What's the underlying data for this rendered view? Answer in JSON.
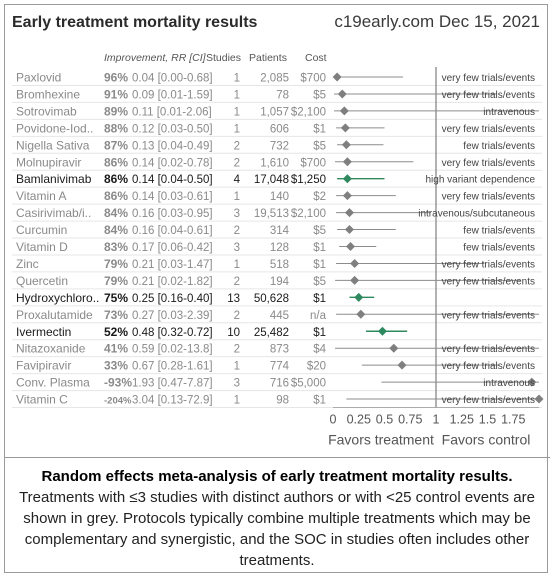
{
  "header": {
    "title": "Early treatment mortality results",
    "source": "c19early.com Dec 15, 2021"
  },
  "columns": {
    "improvement": "Improvement, RR [CI]",
    "studies": "Studies",
    "patients": "Patients",
    "cost": "Cost"
  },
  "caption": {
    "bold": "Random effects meta-analysis of early treatment mortality results.",
    "text": "Treatments with ≤3 studies with distinct authors or with <25 control events are shown in grey. Protocols typically combine multiple treatments which may be complementary and synergistic, and the SOC in studies often includes other treatments."
  },
  "colors": {
    "grey_text": "#8a8a8a",
    "dark_text": "#1a1a1a",
    "grey_marker": "#7f7f7f",
    "green_marker": "#2e8a5e",
    "grey_line": "#8c8c8c",
    "green_line": "#2e8a5e"
  },
  "chart_data": {
    "type": "forest",
    "xlim": [
      0,
      2
    ],
    "ticks": [
      "0",
      "0.25",
      "0.5",
      "0.75",
      "1",
      "1.25",
      "1.5",
      "1.75"
    ],
    "tick_values": [
      0,
      0.25,
      0.5,
      0.75,
      1,
      1.25,
      1.5,
      1.75
    ],
    "reference_line": 1,
    "xlabel_left": "Favors treatment",
    "xlabel_right": "Favors control",
    "rows": [
      {
        "name": "Paxlovid",
        "improvement": "96%",
        "rr": "0.04 [0.00-0.68]",
        "rr_value": 0.04,
        "ci": [
          0.0,
          0.68
        ],
        "studies": "1",
        "patients": "2,085",
        "cost": "$700",
        "note": "very few trials/events",
        "highlight": false
      },
      {
        "name": "Bromhexine",
        "improvement": "91%",
        "rr": "0.09 [0.01-1.59]",
        "rr_value": 0.09,
        "ci": [
          0.01,
          1.59
        ],
        "studies": "1",
        "patients": "78",
        "cost": "$5",
        "note": "very few trials/events",
        "highlight": false
      },
      {
        "name": "Sotrovimab",
        "improvement": "89%",
        "rr": "0.11 [0.01-2.06]",
        "rr_value": 0.11,
        "ci": [
          0.01,
          2.06
        ],
        "studies": "1",
        "patients": "1,057",
        "cost": "$2,100",
        "note": "intravenous",
        "highlight": false
      },
      {
        "name": "Povidone-Iod..",
        "improvement": "88%",
        "rr": "0.12 [0.03-0.50]",
        "rr_value": 0.12,
        "ci": [
          0.03,
          0.5
        ],
        "studies": "1",
        "patients": "606",
        "cost": "$1",
        "note": "very few trials/events",
        "highlight": false
      },
      {
        "name": "Nigella Sativa",
        "improvement": "87%",
        "rr": "0.13 [0.04-0.49]",
        "rr_value": 0.13,
        "ci": [
          0.04,
          0.49
        ],
        "studies": "2",
        "patients": "732",
        "cost": "$5",
        "note": "few trials/events",
        "highlight": false
      },
      {
        "name": "Molnupiravir",
        "improvement": "86%",
        "rr": "0.14 [0.02-0.78]",
        "rr_value": 0.14,
        "ci": [
          0.02,
          0.78
        ],
        "studies": "2",
        "patients": "1,610",
        "cost": "$700",
        "note": "very few trials/events",
        "highlight": false
      },
      {
        "name": "Bamlanivimab",
        "improvement": "86%",
        "rr": "0.14 [0.04-0.50]",
        "rr_value": 0.14,
        "ci": [
          0.04,
          0.5
        ],
        "studies": "4",
        "patients": "17,048",
        "cost": "$1,250",
        "note": "high variant dependence",
        "highlight": true
      },
      {
        "name": "Vitamin A",
        "improvement": "86%",
        "rr": "0.14 [0.03-0.61]",
        "rr_value": 0.14,
        "ci": [
          0.03,
          0.61
        ],
        "studies": "1",
        "patients": "140",
        "cost": "$2",
        "note": "very few trials/events",
        "highlight": false
      },
      {
        "name": "Casirivimab/i..",
        "improvement": "84%",
        "rr": "0.16 [0.03-0.95]",
        "rr_value": 0.16,
        "ci": [
          0.03,
          0.95
        ],
        "studies": "3",
        "patients": "19,513",
        "cost": "$2,100",
        "note": "intravenous/subcutaneous",
        "highlight": false
      },
      {
        "name": "Curcumin",
        "improvement": "84%",
        "rr": "0.16 [0.04-0.61]",
        "rr_value": 0.16,
        "ci": [
          0.04,
          0.61
        ],
        "studies": "2",
        "patients": "314",
        "cost": "$5",
        "note": "few trials/events",
        "highlight": false
      },
      {
        "name": "Vitamin D",
        "improvement": "83%",
        "rr": "0.17 [0.06-0.42]",
        "rr_value": 0.17,
        "ci": [
          0.06,
          0.42
        ],
        "studies": "3",
        "patients": "128",
        "cost": "$1",
        "note": "few trials/events",
        "highlight": false
      },
      {
        "name": "Zinc",
        "improvement": "79%",
        "rr": "0.21 [0.03-1.47]",
        "rr_value": 0.21,
        "ci": [
          0.03,
          1.47
        ],
        "studies": "1",
        "patients": "518",
        "cost": "$1",
        "note": "very few trials/events",
        "highlight": false
      },
      {
        "name": "Quercetin",
        "improvement": "79%",
        "rr": "0.21 [0.02-1.82]",
        "rr_value": 0.21,
        "ci": [
          0.02,
          1.82
        ],
        "studies": "2",
        "patients": "194",
        "cost": "$5",
        "note": "very few trials/events",
        "highlight": false
      },
      {
        "name": "Hydroxychloro..",
        "improvement": "75%",
        "rr": "0.25 [0.16-0.40]",
        "rr_value": 0.25,
        "ci": [
          0.16,
          0.4
        ],
        "studies": "13",
        "patients": "50,628",
        "cost": "$1",
        "note": "",
        "highlight": true
      },
      {
        "name": "Proxalutamide",
        "improvement": "73%",
        "rr": "0.27 [0.03-2.39]",
        "rr_value": 0.27,
        "ci": [
          0.03,
          2.39
        ],
        "studies": "2",
        "patients": "445",
        "cost": "n/a",
        "note": "very few trials/events",
        "highlight": false
      },
      {
        "name": "Ivermectin",
        "improvement": "52%",
        "rr": "0.48 [0.32-0.72]",
        "rr_value": 0.48,
        "ci": [
          0.32,
          0.72
        ],
        "studies": "10",
        "patients": "25,482",
        "cost": "$1",
        "note": "",
        "highlight": true
      },
      {
        "name": "Nitazoxanide",
        "improvement": "41%",
        "rr": "0.59 [0.02-13.8]",
        "rr_value": 0.59,
        "ci": [
          0.02,
          13.8
        ],
        "studies": "2",
        "patients": "873",
        "cost": "$4",
        "note": "very few trials/events",
        "highlight": false
      },
      {
        "name": "Favipiravir",
        "improvement": "33%",
        "rr": "0.67 [0.28-1.61]",
        "rr_value": 0.67,
        "ci": [
          0.28,
          1.61
        ],
        "studies": "1",
        "patients": "774",
        "cost": "$20",
        "note": "very few trials/events",
        "highlight": false
      },
      {
        "name": "Conv. Plasma",
        "improvement": "-93%",
        "rr": "1.93 [0.47-7.87]",
        "rr_value": 1.93,
        "ci": [
          0.47,
          7.87
        ],
        "studies": "3",
        "patients": "716",
        "cost": "$5,000",
        "note": "intravenous",
        "highlight": false
      },
      {
        "name": "Vitamin C",
        "improvement": "-204%",
        "rr": "3.04 [0.13-72.9]",
        "rr_value": 3.04,
        "ci": [
          0.13,
          72.9
        ],
        "studies": "1",
        "patients": "98",
        "cost": "$1",
        "note": "very few trials/events",
        "highlight": false
      }
    ]
  }
}
